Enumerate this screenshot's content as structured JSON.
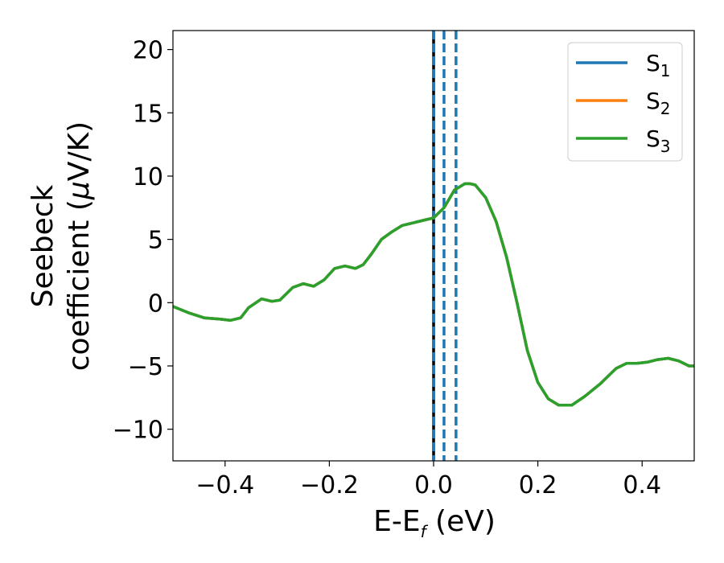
{
  "chart_data": {
    "type": "line",
    "xlabel": {
      "main": "E-E",
      "sub": "f",
      "unit": " (eV)"
    },
    "ylabel": {
      "line1": "Seebeck",
      "line2_text": "coefficient  (",
      "line2_mu": "μ",
      "line2_unit": "V/K)"
    },
    "xlim": [
      -0.5,
      0.5
    ],
    "ylim": [
      -12.5,
      21.5
    ],
    "xticks": [
      {
        "value": -0.4,
        "label": "−0.4"
      },
      {
        "value": -0.2,
        "label": "−0.2"
      },
      {
        "value": 0.0,
        "label": "0.0"
      },
      {
        "value": 0.2,
        "label": "0.2"
      },
      {
        "value": 0.4,
        "label": "0.4"
      }
    ],
    "yticks": [
      {
        "value": -10,
        "label": "−10"
      },
      {
        "value": -5,
        "label": "−5"
      },
      {
        "value": 0,
        "label": "0"
      },
      {
        "value": 5,
        "label": "5"
      },
      {
        "value": 10,
        "label": "10"
      },
      {
        "value": 15,
        "label": "15"
      },
      {
        "value": 20,
        "label": "20"
      }
    ],
    "grid": false,
    "legend_position": "top-right",
    "series": [
      {
        "name": "S",
        "sub": "1",
        "color": "#1f77b4",
        "values_same_as": "S3"
      },
      {
        "name": "S",
        "sub": "2",
        "color": "#ff7f0e",
        "values_same_as": "S3"
      },
      {
        "name": "S",
        "sub": "3",
        "color": "#2ca02c",
        "x": [
          -0.5,
          -0.47,
          -0.44,
          -0.41,
          -0.39,
          -0.37,
          -0.355,
          -0.33,
          -0.31,
          -0.295,
          -0.27,
          -0.25,
          -0.23,
          -0.21,
          -0.19,
          -0.17,
          -0.15,
          -0.135,
          -0.12,
          -0.1,
          -0.08,
          -0.06,
          -0.04,
          -0.02,
          0.0,
          0.02,
          0.04,
          0.06,
          0.07,
          0.08,
          0.1,
          0.12,
          0.14,
          0.16,
          0.18,
          0.2,
          0.22,
          0.24,
          0.265,
          0.29,
          0.32,
          0.35,
          0.37,
          0.39,
          0.41,
          0.43,
          0.45,
          0.47,
          0.49,
          0.5
        ],
        "y": [
          -0.3,
          -0.8,
          -1.2,
          -1.3,
          -1.4,
          -1.2,
          -0.4,
          0.3,
          0.1,
          0.2,
          1.2,
          1.5,
          1.3,
          1.8,
          2.7,
          2.9,
          2.7,
          3.0,
          3.8,
          5.0,
          5.6,
          6.1,
          6.3,
          6.5,
          6.7,
          7.5,
          8.9,
          9.4,
          9.4,
          9.3,
          8.3,
          6.4,
          3.6,
          0.0,
          -3.8,
          -6.3,
          -7.6,
          -8.1,
          -8.1,
          -7.4,
          -6.4,
          -5.2,
          -4.8,
          -4.8,
          -4.7,
          -4.5,
          -4.4,
          -4.6,
          -5.0,
          -5.0
        ]
      }
    ],
    "vlines": [
      {
        "x": 0.0,
        "color": "#000000",
        "style": "solid"
      },
      {
        "x": 0.0,
        "color": "#1f77b4",
        "style": "dashed"
      },
      {
        "x": 0.02,
        "color": "#1f77b4",
        "style": "dashed"
      },
      {
        "x": 0.043,
        "color": "#1f77b4",
        "style": "dashed"
      }
    ]
  }
}
